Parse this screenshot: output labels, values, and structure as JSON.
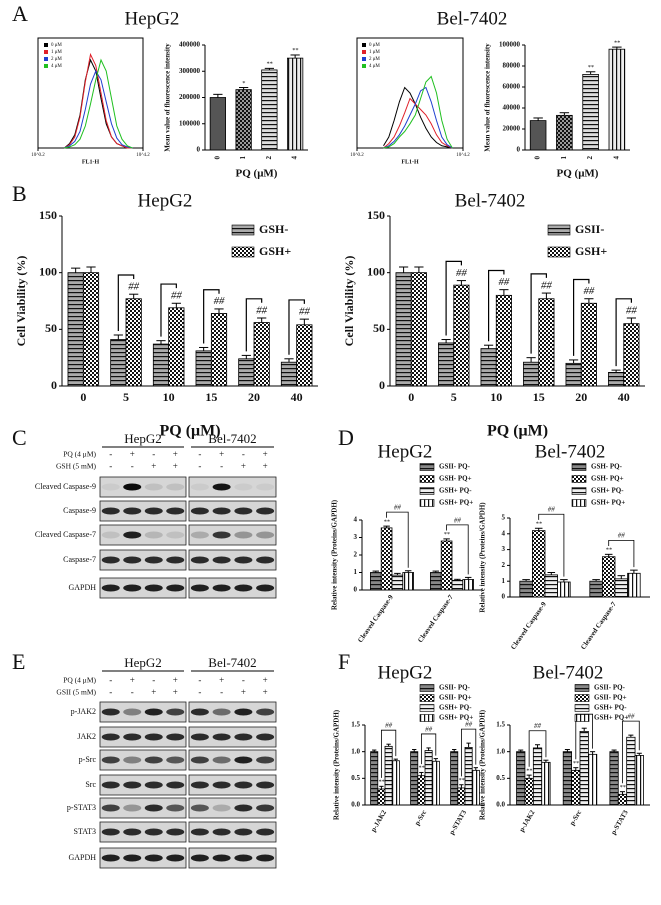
{
  "panel_labels": [
    "A",
    "B",
    "C",
    "D",
    "E",
    "F"
  ],
  "chart_data": [
    {
      "type": "line",
      "title": "HepG2",
      "xlabel": "FL1-H",
      "xlim": [
        0.2,
        4.2
      ],
      "ylim": [
        0,
        100
      ],
      "xticks": [
        {
          "value": 0.2,
          "label": "10^0.2"
        },
        {
          "value": 4.2,
          "label": "10^4.2"
        }
      ],
      "legend": "upper left",
      "x": [
        1.2,
        1.4,
        1.6,
        1.8,
        2.0,
        2.2,
        2.4,
        2.6,
        2.8,
        3.0,
        3.2,
        3.4,
        3.6,
        3.8
      ],
      "series": [
        {
          "name": "0 μM",
          "color": "#000000",
          "values": [
            0,
            4,
            12,
            30,
            62,
            80,
            70,
            45,
            22,
            10,
            4,
            2,
            0,
            0
          ]
        },
        {
          "name": "1 μM",
          "color": "#e0202a",
          "values": [
            0,
            3,
            10,
            28,
            60,
            85,
            75,
            50,
            25,
            10,
            4,
            2,
            0,
            0
          ]
        },
        {
          "name": "2 μM",
          "color": "#2040d0",
          "values": [
            0,
            2,
            6,
            15,
            35,
            58,
            70,
            62,
            42,
            22,
            9,
            3,
            1,
            0
          ]
        },
        {
          "name": "4 μM",
          "color": "#20c020",
          "values": [
            0,
            1,
            3,
            8,
            20,
            40,
            62,
            80,
            70,
            45,
            20,
            8,
            2,
            0
          ]
        }
      ]
    },
    {
      "type": "bar",
      "xlabel": "PQ (μM)",
      "ylabel": "Mean value of fluorescence intensity",
      "categories": [
        "0",
        "1",
        "2",
        "4"
      ],
      "values": [
        200000,
        230000,
        305000,
        350000
      ],
      "errors": [
        12000,
        8000,
        6000,
        12000
      ],
      "significance": [
        null,
        "*",
        "**",
        "**"
      ],
      "colors": [
        "#555555",
        "#999999",
        "#dddddd",
        "#eeeeee"
      ],
      "patterns": [
        "solid",
        "checker",
        "hstripe",
        "vstripe"
      ],
      "ylim": [
        0,
        400000
      ],
      "yticks": [
        0,
        100000,
        200000,
        300000,
        400000
      ]
    },
    {
      "type": "line",
      "title": "Bel-7402",
      "xlabel": "FL1-H",
      "xlim": [
        0.2,
        4.2
      ],
      "ylim": [
        0,
        100
      ],
      "xticks": [
        {
          "value": 0.2,
          "label": "10^0.2"
        },
        {
          "value": 4.2,
          "label": "10^4.2"
        }
      ],
      "legend": "upper left",
      "x": [
        1.2,
        1.4,
        1.6,
        1.8,
        2.0,
        2.2,
        2.4,
        2.6,
        2.8,
        3.0,
        3.2,
        3.4,
        3.6,
        3.8
      ],
      "series": [
        {
          "name": "0 μM",
          "color": "#000000",
          "values": [
            2,
            10,
            25,
            42,
            55,
            50,
            40,
            28,
            18,
            10,
            5,
            2,
            1,
            0
          ]
        },
        {
          "name": "1 μM",
          "color": "#e0202a",
          "values": [
            0,
            4,
            10,
            20,
            32,
            45,
            40,
            35,
            30,
            22,
            12,
            5,
            2,
            0
          ]
        },
        {
          "name": "2 μM",
          "color": "#2040d0",
          "values": [
            0,
            2,
            6,
            12,
            20,
            30,
            40,
            52,
            55,
            42,
            25,
            10,
            3,
            0
          ]
        },
        {
          "name": "4 μM",
          "color": "#20c020",
          "values": [
            0,
            1,
            4,
            10,
            15,
            22,
            30,
            45,
            60,
            65,
            50,
            25,
            8,
            0
          ]
        }
      ]
    },
    {
      "type": "bar",
      "xlabel": "PQ (μM)",
      "ylabel": "Mean value of fluorescence intensity",
      "categories": [
        "0",
        "1",
        "2",
        "4"
      ],
      "values": [
        28000,
        33000,
        72000,
        96000
      ],
      "errors": [
        2500,
        2500,
        2500,
        2000
      ],
      "significance": [
        null,
        null,
        "**",
        "**"
      ],
      "colors": [
        "#555555",
        "#999999",
        "#dddddd",
        "#eeeeee"
      ],
      "patterns": [
        "solid",
        "checker",
        "hstripe",
        "vstripe"
      ],
      "ylim": [
        0,
        100000
      ],
      "yticks": [
        0,
        20000,
        40000,
        60000,
        80000,
        100000
      ]
    },
    {
      "type": "bar",
      "title": "HepG2",
      "xlabel": "PQ (μM)",
      "ylabel": "Cell Viability (%)",
      "categories": [
        "0",
        "5",
        "10",
        "15",
        "20",
        "40"
      ],
      "legend": "upper right",
      "brackets": true,
      "series": [
        {
          "name": "GSH-",
          "color": "#aaaaaa",
          "pattern": "hstripe",
          "values": [
            100,
            41,
            37,
            31,
            24,
            21
          ],
          "errors": [
            4,
            4,
            3,
            3,
            3,
            3
          ]
        },
        {
          "name": "GSH+",
          "color": "#ffffff",
          "pattern": "checker",
          "values": [
            100,
            77,
            69,
            64,
            56,
            54
          ],
          "errors": [
            5,
            4,
            4,
            4,
            4,
            5
          ],
          "significance": [
            null,
            "##",
            "##",
            "##",
            "##",
            "##"
          ]
        }
      ],
      "ylim": [
        0,
        150
      ],
      "yticks": [
        0,
        50,
        100,
        150
      ]
    },
    {
      "type": "bar",
      "title": "Bel-7402",
      "xlabel": "PQ (μM)",
      "ylabel": "Cell Viability (%)",
      "categories": [
        "0",
        "5",
        "10",
        "15",
        "20",
        "40"
      ],
      "legend": "upper right",
      "brackets": true,
      "series": [
        {
          "name": "GSII-",
          "color": "#aaaaaa",
          "pattern": "hstripe",
          "values": [
            100,
            38,
            33,
            21,
            20,
            12
          ],
          "errors": [
            5,
            3,
            3,
            4,
            3,
            2
          ]
        },
        {
          "name": "GSH+",
          "color": "#ffffff",
          "pattern": "checker",
          "values": [
            100,
            89,
            80,
            77,
            73,
            55
          ],
          "errors": [
            5,
            4,
            5,
            5,
            4,
            5
          ],
          "significance": [
            null,
            "##",
            "##",
            "##",
            "##",
            "##"
          ]
        }
      ],
      "ylim": [
        0,
        150
      ],
      "yticks": [
        0,
        50,
        100,
        150
      ]
    },
    {
      "type": "bar",
      "title": "HepG2",
      "ylabel": "Relative intensity (Proteins/GAPDH)",
      "categories": [
        "Cleaved Caspase-9",
        "Cleaved Caspase-7"
      ],
      "legend": "upper right",
      "bracket_labels": [
        "##",
        "##"
      ],
      "series": [
        {
          "name": "GSII- PQ-",
          "color": "#888888",
          "pattern": "hstripe",
          "values": [
            1.0,
            1.0
          ],
          "errors": [
            0.08,
            0.08
          ]
        },
        {
          "name": "GSH- PQ+",
          "color": "#ffffff",
          "pattern": "checker",
          "values": [
            3.55,
            2.8
          ],
          "errors": [
            0.1,
            0.12
          ],
          "significance": [
            "**",
            "**"
          ]
        },
        {
          "name": "GSH+ PQ-",
          "color": "#eeeeee",
          "pattern": "hstripe",
          "values": [
            0.85,
            0.55
          ],
          "errors": [
            0.1,
            0.06
          ]
        },
        {
          "name": "GSH+ PQ+",
          "color": "#ffffff",
          "pattern": "vstripe",
          "values": [
            1.0,
            0.6
          ],
          "errors": [
            0.1,
            0.12
          ]
        }
      ],
      "ylim": [
        0,
        4
      ],
      "yticks": [
        0,
        1,
        2,
        3,
        4
      ]
    },
    {
      "type": "bar",
      "title": "Bel-7402",
      "ylabel": "Relative intensity (Proteins/GAPDH)",
      "categories": [
        "Cleaved Caspase-9",
        "Cleaved Caspase-7"
      ],
      "legend": "upper right",
      "bracket_labels": [
        "##",
        "##"
      ],
      "series": [
        {
          "name": "GSH- PQ-",
          "color": "#888888",
          "pattern": "hstripe",
          "values": [
            1.0,
            1.0
          ],
          "errors": [
            0.1,
            0.1
          ]
        },
        {
          "name": "GSH- PQ+",
          "color": "#ffffff",
          "pattern": "checker",
          "values": [
            4.2,
            2.55
          ],
          "errors": [
            0.15,
            0.15
          ],
          "significance": [
            "**",
            "**"
          ]
        },
        {
          "name": "GSH+ PQ-",
          "color": "#eeeeee",
          "pattern": "hstripe",
          "values": [
            1.4,
            1.15
          ],
          "errors": [
            0.15,
            0.2
          ]
        },
        {
          "name": "GSH+ PQ+",
          "color": "#ffffff",
          "pattern": "vstripe",
          "values": [
            0.95,
            1.5
          ],
          "errors": [
            0.15,
            0.2
          ]
        }
      ],
      "ylim": [
        0,
        5
      ],
      "yticks": [
        0,
        1,
        2,
        3,
        4,
        5
      ]
    },
    {
      "type": "bar",
      "title": "HepG2",
      "ylabel": "Relative intensity (Proteins/GAPDH)",
      "categories": [
        "p-JAK2",
        "p-Src",
        "p-STAT3"
      ],
      "legend": "upper right",
      "bracket_labels": [
        "##",
        "##",
        "##"
      ],
      "series": [
        {
          "name": "GSII- PQ-",
          "color": "#888888",
          "pattern": "hstripe",
          "values": [
            1.0,
            1.0,
            1.0
          ],
          "errors": [
            0.03,
            0.04,
            0.04
          ]
        },
        {
          "name": "GSII- PQ+",
          "color": "#ffffff",
          "pattern": "checker",
          "values": [
            0.3,
            0.55,
            0.32
          ],
          "errors": [
            0.05,
            0.06,
            0.06
          ],
          "significance": [
            "**",
            "**",
            "**"
          ]
        },
        {
          "name": "GSH+ PQ-",
          "color": "#eeeeee",
          "pattern": "hstripe",
          "values": [
            1.1,
            1.02,
            1.08
          ],
          "errors": [
            0.04,
            0.05,
            0.08
          ]
        },
        {
          "name": "GSH+ PQ+",
          "color": "#ffffff",
          "pattern": "vstripe",
          "values": [
            0.83,
            0.82,
            0.65
          ],
          "errors": [
            0.03,
            0.05,
            0.05
          ]
        }
      ],
      "ylim": [
        0,
        1.5
      ],
      "yticks": [
        {
          "value": 0,
          "label": "0.0"
        },
        {
          "value": 0.5,
          "label": "0.5"
        },
        {
          "value": 1,
          "label": "1.0"
        },
        {
          "value": 1.5,
          "label": "1.5"
        }
      ]
    },
    {
      "type": "bar",
      "title": "Bel-7402",
      "ylabel": "Relative intensity (Proteins/GAPDH)",
      "categories": [
        "p-JAK2",
        "p-Src",
        "p-STAT3"
      ],
      "legend": "upper right",
      "bracket_labels": [
        "##",
        "##",
        "##"
      ],
      "series": [
        {
          "name": "GSII- PQ-",
          "color": "#888888",
          "pattern": "hstripe",
          "values": [
            1.0,
            1.0,
            1.0
          ],
          "errors": [
            0.03,
            0.04,
            0.03
          ]
        },
        {
          "name": "GSII- PQ+",
          "color": "#ffffff",
          "pattern": "checker",
          "values": [
            0.5,
            0.65,
            0.2
          ],
          "errors": [
            0.06,
            0.05,
            0.05
          ],
          "significance": [
            "**",
            "**",
            "**"
          ]
        },
        {
          "name": "GSH+ PQ-",
          "color": "#eeeeee",
          "pattern": "hstripe",
          "values": [
            1.07,
            1.38,
            1.27
          ],
          "errors": [
            0.06,
            0.06,
            0.04
          ]
        },
        {
          "name": "GSH+ PQ+",
          "color": "#ffffff",
          "pattern": "vstripe",
          "values": [
            0.8,
            0.95,
            0.93
          ],
          "errors": [
            0.04,
            0.05,
            0.04
          ]
        }
      ],
      "ylim": [
        0,
        1.5
      ],
      "yticks": [
        {
          "value": 0,
          "label": "0.0"
        },
        {
          "value": 0.5,
          "label": "0.5"
        },
        {
          "value": 1,
          "label": "1.0"
        },
        {
          "value": 1.5,
          "label": "1.5"
        }
      ]
    }
  ],
  "blots": [
    {
      "groups": [
        "HepG2",
        "Bel-7402"
      ],
      "conditions": [
        {
          "label": "PQ (4 μM)",
          "signs": [
            "-",
            "+",
            "-",
            "+",
            "-",
            "+",
            "-",
            "+"
          ]
        },
        {
          "label": "GSH (5 mM)",
          "signs": [
            "-",
            "-",
            "+",
            "+",
            "-",
            "-",
            "+",
            "+"
          ]
        }
      ],
      "rows": [
        "Cleaved Caspase-9",
        "Caspase-9",
        "Cleaved Caspase-7",
        "Caspase-7",
        "GAPDH"
      ]
    },
    {
      "groups": [
        "HepG2",
        "Bel-7402"
      ],
      "conditions": [
        {
          "label": "PQ (4 μM)",
          "signs": [
            "-",
            "+",
            "-",
            "+",
            "-",
            "+",
            "-",
            "+"
          ]
        },
        {
          "label": "GSII (5 mM)",
          "signs": [
            "-",
            "-",
            "+",
            "+",
            "-",
            "-",
            "+",
            "+"
          ]
        }
      ],
      "rows": [
        "p-JAK2",
        "JAK2",
        "p-Src",
        "Src",
        "p-STAT3",
        "STAT3",
        "GAPDH"
      ]
    }
  ]
}
